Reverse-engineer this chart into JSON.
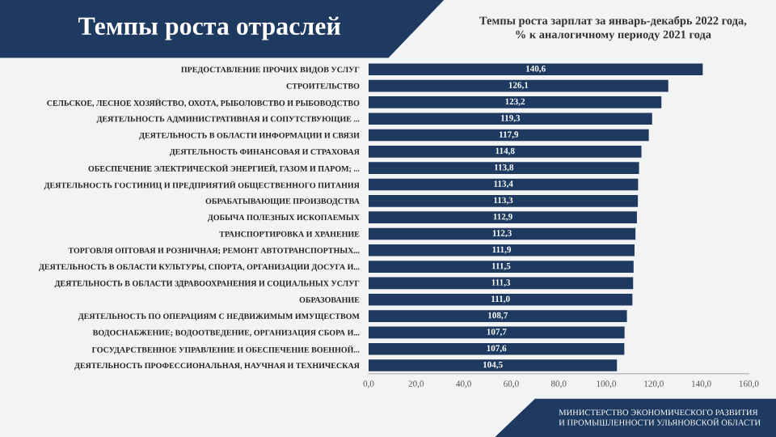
{
  "chart_data": {
    "type": "bar",
    "orientation": "horizontal",
    "title": "Темпы роста отраслей",
    "subtitle": "Темпы роста зарплат за январь-декабрь 2022 года,\n% к аналогичному периоду 2021 года",
    "categories": [
      "ПРЕДОСТАВЛЕНИЕ ПРОЧИХ ВИДОВ УСЛУГ",
      "СТРОИТЕЛЬСТВО",
      "СЕЛЬСКОЕ, ЛЕСНОЕ ХОЗЯЙСТВО, ОХОТА, РЫБОЛОВСТВО И РЫБОВОДСТВО",
      "ДЕЯТЕЛЬНОСТЬ АДМИНИСТРАТИВНАЯ И СОПУТСТВУЮЩИЕ ...",
      "ДЕЯТЕЛЬНОСТЬ В ОБЛАСТИ ИНФОРМАЦИИ И СВЯЗИ",
      "ДЕЯТЕЛЬНОСТЬ ФИНАНСОВАЯ И СТРАХОВАЯ",
      "ОБЕСПЕЧЕНИЕ ЭЛЕКТРИЧЕСКОЙ ЭНЕРГИЕЙ, ГАЗОМ И ПАРОМ; ...",
      "ДЕЯТЕЛЬНОСТЬ ГОСТИНИЦ И ПРЕДПРИЯТИЙ ОБЩЕСТВЕННОГО ПИТАНИЯ",
      "ОБРАБАТЫВАЮЩИЕ ПРОИЗВОДСТВА",
      "ДОБЫЧА ПОЛЕЗНЫХ ИСКОПАЕМЫХ",
      "ТРАНСПОРТИРОВКА И ХРАНЕНИЕ",
      "ТОРГОВЛЯ ОПТОВАЯ И РОЗНИЧНАЯ; РЕМОНТ АВТОТРАНСПОРТНЫХ...",
      "ДЕЯТЕЛЬНОСТЬ В ОБЛАСТИ КУЛЬТУРЫ, СПОРТА, ОРГАНИЗАЦИИ ДОСУГА И...",
      "ДЕЯТЕЛЬНОСТЬ В ОБЛАСТИ ЗДРАВООХРАНЕНИЯ И СОЦИАЛЬНЫХ УСЛУГ",
      "ОБРАЗОВАНИЕ",
      "ДЕЯТЕЛЬНОСТЬ ПО ОПЕРАЦИЯМ С НЕДВИЖИМЫМ ИМУЩЕСТВОМ",
      "ВОДОСНАБЖЕНИЕ; ВОДООТВЕДЕНИЕ, ОРГАНИЗАЦИЯ СБОРА И...",
      "ГОСУДАРСТВЕННОЕ УПРАВЛЕНИЕ И ОБЕСПЕЧЕНИЕ ВОЕННОЙ...",
      "ДЕЯТЕЛЬНОСТЬ ПРОФЕССИОНАЛЬНАЯ, НАУЧНАЯ И ТЕХНИЧЕСКАЯ"
    ],
    "values": [
      140.6,
      126.1,
      123.2,
      119.3,
      117.9,
      114.8,
      113.8,
      113.4,
      113.3,
      112.9,
      112.3,
      111.9,
      111.5,
      111.3,
      111.0,
      108.7,
      107.7,
      107.6,
      104.5
    ],
    "value_labels": [
      "140,6",
      "126,1",
      "123,2",
      "119,3",
      "117,9",
      "114,8",
      "113,8",
      "113,4",
      "113,3",
      "112,9",
      "112,3",
      "111,9",
      "111,5",
      "111,3",
      "111,0",
      "108,7",
      "107,7",
      "107,6",
      "104,5"
    ],
    "color": "#1f3a60",
    "xlim": [
      0,
      160
    ],
    "xticks": [
      {
        "value": 0,
        "label": "0,0"
      },
      {
        "value": 20,
        "label": "20,0"
      },
      {
        "value": 40,
        "label": "40,0"
      },
      {
        "value": 60,
        "label": "60,0"
      },
      {
        "value": 80,
        "label": "80,0"
      },
      {
        "value": 100,
        "label": "100,0"
      },
      {
        "value": 120,
        "label": "120,0"
      },
      {
        "value": 140,
        "label": "140,0"
      },
      {
        "value": 160,
        "label": "160,0"
      }
    ],
    "grid": false,
    "annotations": [
      "МИНИСТЕРСТВО ЭКОНОМИЧЕСКОГО РАЗВИТИЯ\nИ ПРОМЫШЛЕННОСТИ УЛЬЯНОВСКОЙ ОБЛАСТИ"
    ]
  }
}
